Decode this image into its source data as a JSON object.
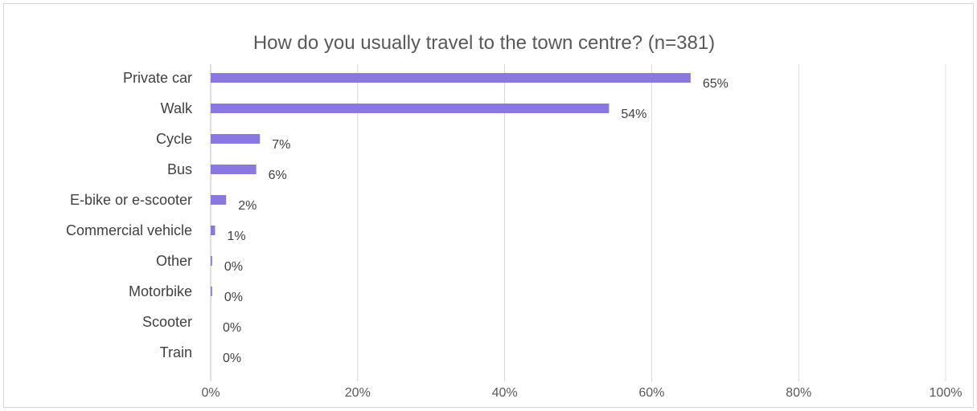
{
  "chart_data": {
    "type": "bar",
    "orientation": "horizontal",
    "title": "How do you usually travel to the town centre? (n=381)",
    "categories": [
      "Private car",
      "Walk",
      "Cycle",
      "Bus",
      "E-bike or e-scooter",
      "Commercial vehicle",
      "Other",
      "Motorbike",
      "Scooter",
      "Train"
    ],
    "values": [
      65.3,
      54.2,
      6.7,
      6.2,
      2.1,
      0.6,
      0.2,
      0.2,
      0,
      0
    ],
    "data_labels": [
      "65%",
      "54%",
      "7%",
      "6%",
      "2%",
      "1%",
      "0%",
      "0%",
      "0%",
      "0%"
    ],
    "xlim": [
      0,
      100
    ],
    "x_ticks": [
      0,
      20,
      40,
      60,
      80,
      100
    ],
    "x_tick_labels": [
      "0%",
      "20%",
      "40%",
      "60%",
      "80%",
      "100%"
    ],
    "grid": "vertical",
    "legend": "none",
    "bar_color": "#8A78E0"
  }
}
